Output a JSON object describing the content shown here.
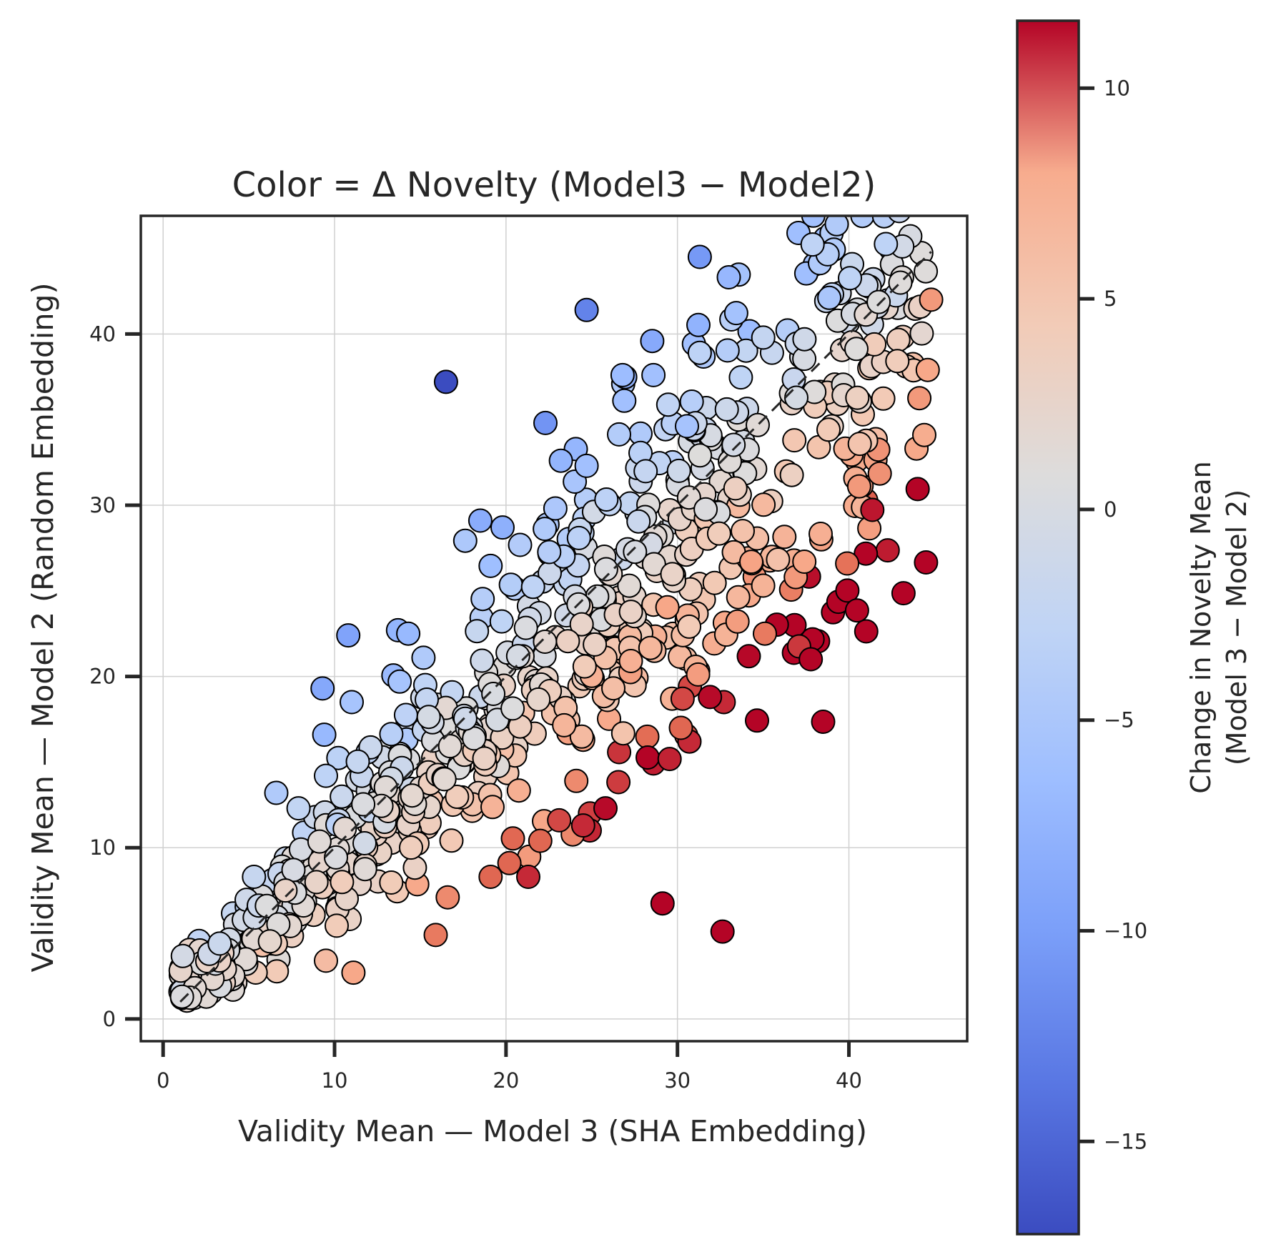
{
  "chart_data": {
    "type": "scatter",
    "title": "Color = Δ Novelty (Model3 − Model2)",
    "xlabel": "Validity Mean — Model 3 (SHA Embedding)",
    "ylabel": "Validity Mean — Model 2 (Random Embedding)",
    "xlim": [
      -1.3,
      46.9
    ],
    "ylim": [
      -1.3,
      46.9
    ],
    "x_ticks": [
      0,
      10,
      20,
      30,
      40
    ],
    "y_ticks": [
      0,
      10,
      20,
      30,
      40
    ],
    "x_tick_labels": [
      "0",
      "10",
      "20",
      "30",
      "40"
    ],
    "y_tick_labels": [
      "0",
      "10",
      "20",
      "30",
      "40"
    ],
    "grid": true,
    "reference_line": {
      "style": "dashed",
      "from": [
        1,
        1
      ],
      "to": [
        44.8,
        44.8
      ]
    },
    "colorbar": {
      "label_line1": "Change in Novelty Mean",
      "label_line2": "(Model 3 − Model 2)",
      "colormap": "coolwarm",
      "range": [
        -17.2,
        11.6
      ],
      "ticks": [
        10,
        5,
        0,
        -5,
        -10,
        -15
      ],
      "tick_labels": [
        "10",
        "5",
        "0",
        "−5",
        "−10",
        "−15"
      ]
    },
    "generated_points": {
      "count": 760,
      "note": "dense cloud along the diagonal; color = y − x offset"
    },
    "points": [
      {
        "x": 16.5,
        "y": 37.2,
        "c": -17.2
      },
      {
        "x": 24.7,
        "y": 41.4,
        "c": -12.5
      },
      {
        "x": 31.3,
        "y": 44.5,
        "c": -10.5
      },
      {
        "x": 22.3,
        "y": 34.8,
        "c": -11.0
      },
      {
        "x": 10.8,
        "y": 22.4,
        "c": -9.5
      },
      {
        "x": 9.3,
        "y": 19.3,
        "c": -9.0
      },
      {
        "x": 18.5,
        "y": 29.1,
        "c": -8.5
      },
      {
        "x": 19.8,
        "y": 28.7,
        "c": -8.0
      },
      {
        "x": 23.2,
        "y": 32.6,
        "c": -7.5
      },
      {
        "x": 13.7,
        "y": 22.7,
        "c": -7.5
      },
      {
        "x": 14.3,
        "y": 22.5,
        "c": -7.0
      },
      {
        "x": 9.4,
        "y": 16.6,
        "c": -7.0
      },
      {
        "x": 26.8,
        "y": 37.6,
        "c": -6.5
      },
      {
        "x": 28.6,
        "y": 37.6,
        "c": -6.0
      },
      {
        "x": 26.9,
        "y": 36.1,
        "c": -6.0
      },
      {
        "x": 24.7,
        "y": 32.3,
        "c": -6.0
      },
      {
        "x": 13.8,
        "y": 19.7,
        "c": -5.5
      },
      {
        "x": 11.0,
        "y": 18.5,
        "c": -5.5
      },
      {
        "x": 6.6,
        "y": 13.2,
        "c": -4.5
      },
      {
        "x": 31.3,
        "y": 38.9,
        "c": -3.0
      },
      {
        "x": 7.9,
        "y": 12.3,
        "c": -2.5
      },
      {
        "x": 9.5,
        "y": 14.2,
        "c": -3.0
      },
      {
        "x": 5.3,
        "y": 8.3,
        "c": -2.0
      },
      {
        "x": 43.0,
        "y": 43.0,
        "c": 1.0
      },
      {
        "x": 44.8,
        "y": 42.0,
        "c": 8.5
      },
      {
        "x": 44.6,
        "y": 37.9,
        "c": 8.0
      },
      {
        "x": 44.4,
        "y": 34.1,
        "c": 7.5
      },
      {
        "x": 40.6,
        "y": 31.1,
        "c": 8.5
      },
      {
        "x": 36.9,
        "y": 25.8,
        "c": 8.5
      },
      {
        "x": 37.4,
        "y": 26.7,
        "c": 8.0
      },
      {
        "x": 35.1,
        "y": 22.5,
        "c": 9.5
      },
      {
        "x": 32.7,
        "y": 18.5,
        "c": 11.0
      },
      {
        "x": 31.9,
        "y": 18.8,
        "c": 11.5
      },
      {
        "x": 30.7,
        "y": 16.2,
        "c": 11.0
      },
      {
        "x": 30.3,
        "y": 18.7,
        "c": 10.5
      },
      {
        "x": 30.2,
        "y": 17.0,
        "c": 10.0
      },
      {
        "x": 25.8,
        "y": 12.3,
        "c": 11.5
      },
      {
        "x": 24.5,
        "y": 11.3,
        "c": 11.0
      },
      {
        "x": 23.1,
        "y": 11.6,
        "c": 10.5
      },
      {
        "x": 21.3,
        "y": 8.3,
        "c": 11.0
      },
      {
        "x": 22.0,
        "y": 10.4,
        "c": 10.0
      },
      {
        "x": 20.2,
        "y": 9.1,
        "c": 10.0
      },
      {
        "x": 19.1,
        "y": 8.3,
        "c": 10.0
      },
      {
        "x": 24.1,
        "y": 13.9,
        "c": 9.0
      },
      {
        "x": 15.9,
        "y": 4.9,
        "c": 9.5
      },
      {
        "x": 11.1,
        "y": 2.7,
        "c": 8.0
      },
      {
        "x": 16.6,
        "y": 7.1,
        "c": 9.0
      },
      {
        "x": 9.5,
        "y": 3.4,
        "c": 6.0
      },
      {
        "x": 2.7,
        "y": 3.8,
        "c": -1.0
      },
      {
        "x": 3.3,
        "y": 4.4,
        "c": -1.5
      },
      {
        "x": 1.1,
        "y": 1.3,
        "c": 0.5
      }
    ]
  }
}
